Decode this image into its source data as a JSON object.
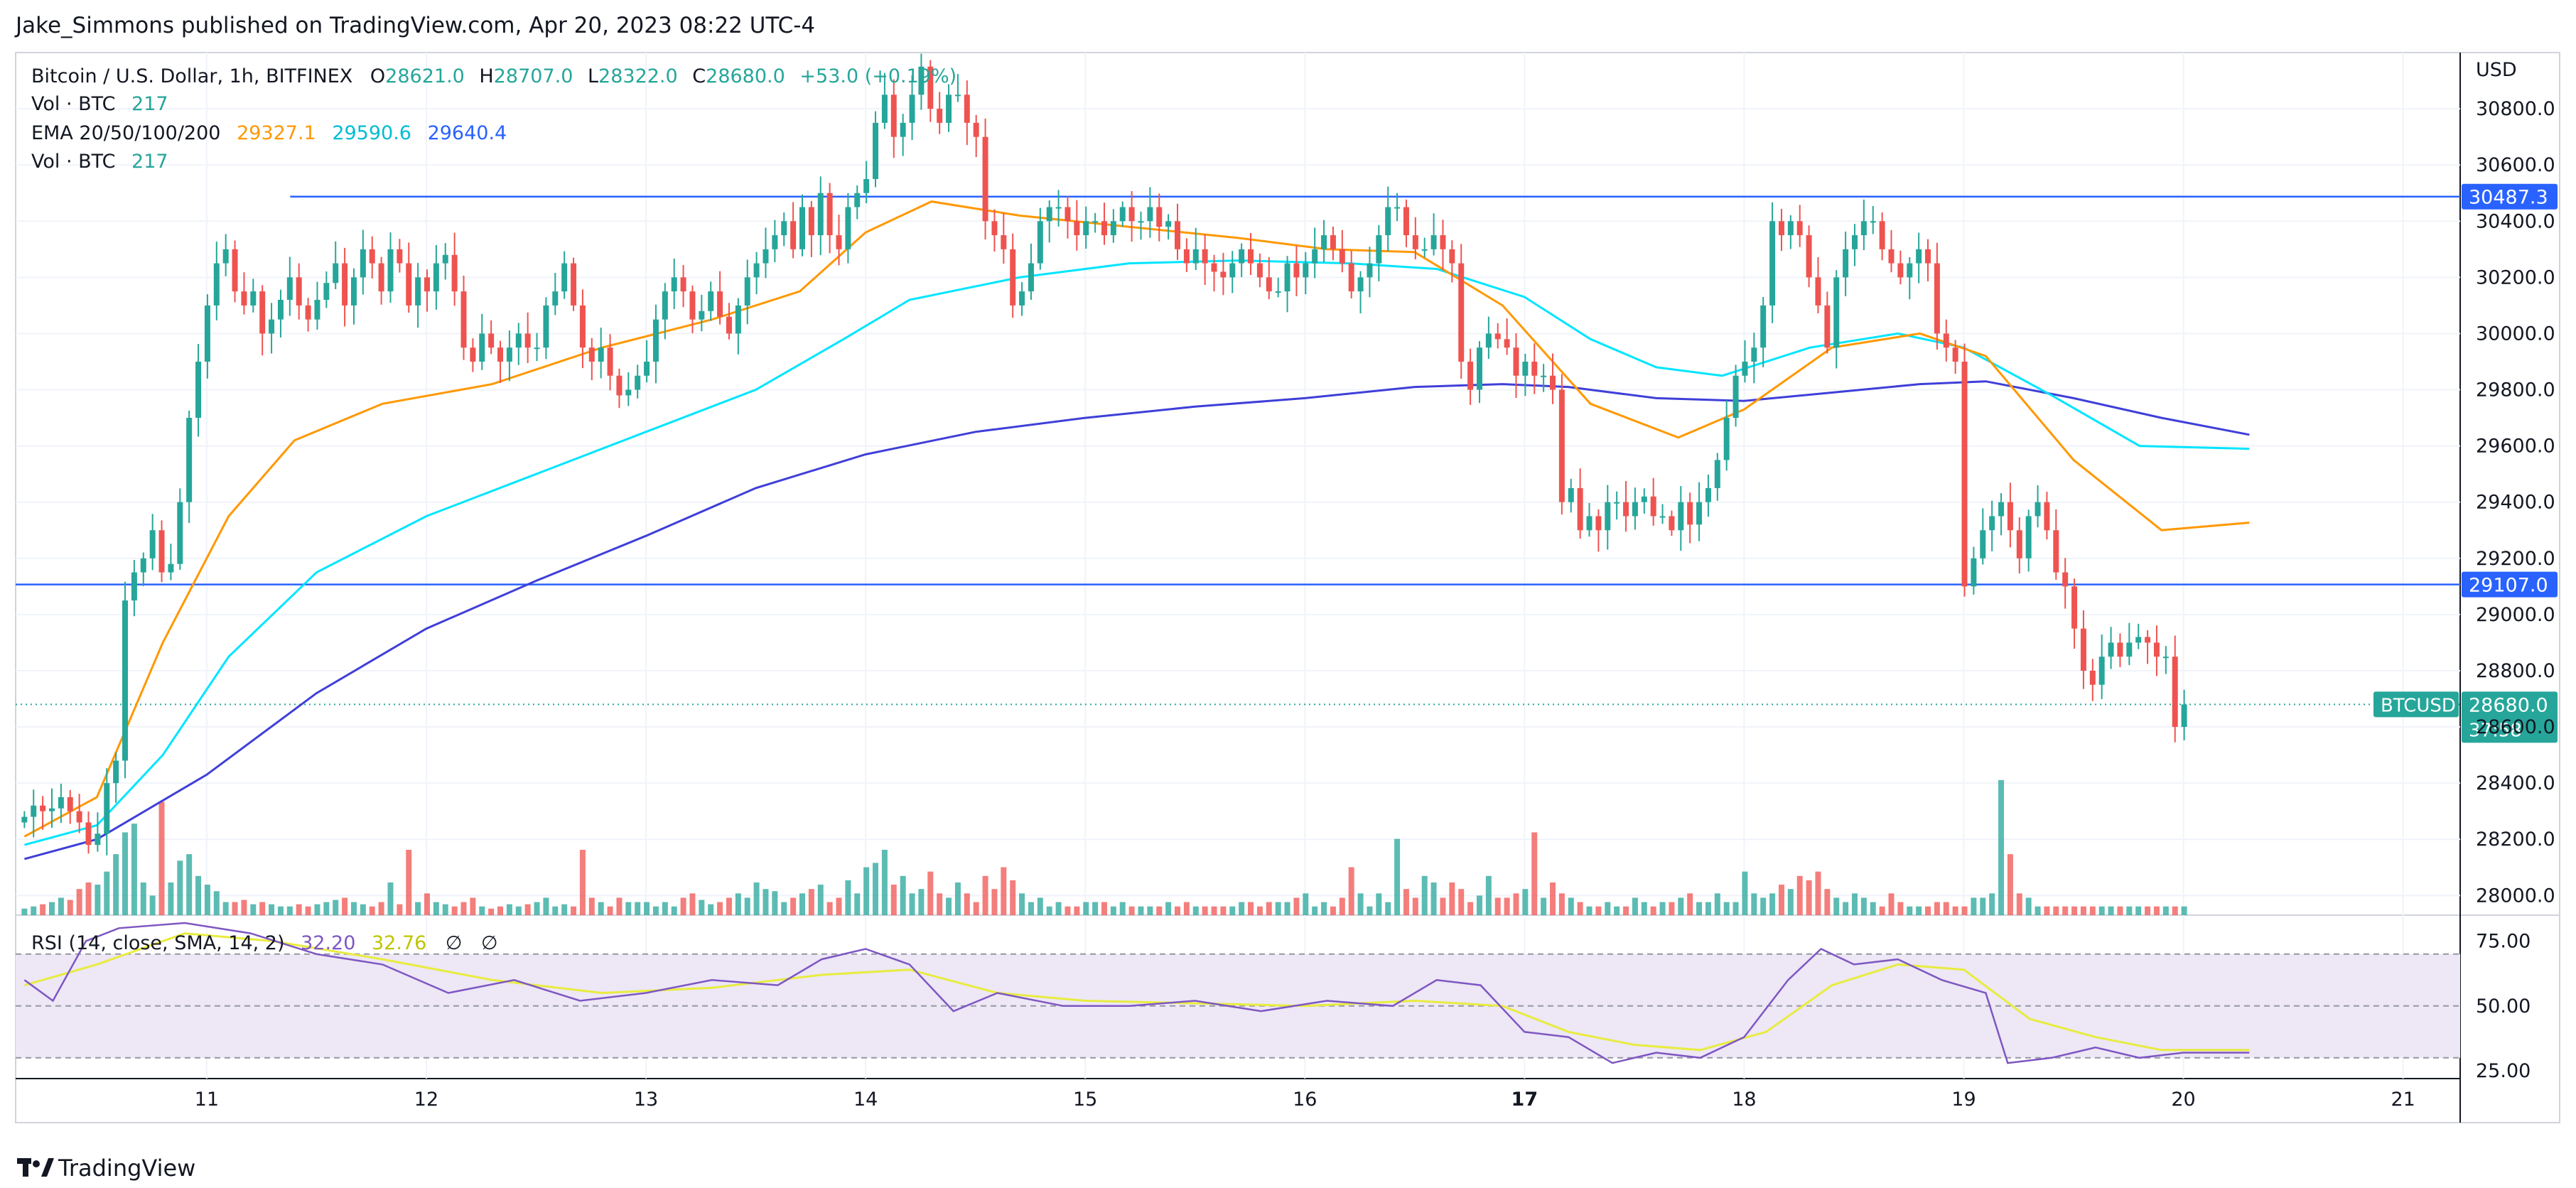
{
  "header": {
    "publisher_line": "Jake_Simmons published on TradingView.com, Apr 20, 2023 08:22 UTC-4"
  },
  "footer": {
    "brand": "TradingView"
  },
  "legend": {
    "symbol": "Bitcoin / U.S. Dollar, 1h, BITFINEX",
    "ohlc": {
      "o_label": "O",
      "o": "28621.0",
      "h_label": "H",
      "h": "28707.0",
      "l_label": "L",
      "l": "28322.0",
      "c_label": "C",
      "c": "28680.0",
      "change": "+53.0 (+0.19%)"
    },
    "vol_label": "Vol · BTC",
    "vol_value": "217",
    "ema_label": "EMA 20/50/100/200",
    "ema_values": [
      "29327.1",
      "29590.6",
      "29640.4"
    ],
    "vol2_label": "Vol · BTC",
    "vol2_value": "217"
  },
  "rsi_legend": {
    "label": "RSI (14, close, SMA, 14, 2)",
    "rsi": "32.20",
    "sma": "32.76",
    "null1": "∅",
    "null2": "∅"
  },
  "colors": {
    "up": "#26a69a",
    "down": "#ef5350",
    "ema20": "#ff9800",
    "ema50": "#00e5ff",
    "ema200": "#3f3fd9",
    "hline": "#2962ff",
    "rsi": "#7e57c2",
    "rsi_sma": "#e8ec3f",
    "rsi_band": "#ede7f6"
  },
  "chart_data": {
    "type": "candlestick",
    "symbol": "BTCUSD",
    "currency": "USD",
    "x_tick_labels": [
      "11",
      "12",
      "13",
      "14",
      "15",
      "16",
      "17",
      "18",
      "19",
      "20",
      "21"
    ],
    "x_tick_days": [
      11,
      12,
      13,
      14,
      15,
      16,
      17,
      18,
      19,
      20,
      21
    ],
    "x_range_days": [
      10.13,
      21.26
    ],
    "y_ticks": [
      28000,
      28200,
      28400,
      28600,
      28800,
      29000,
      29200,
      29400,
      29600,
      29800,
      30000,
      30200,
      30400,
      30600,
      30800
    ],
    "y_tick_labels": [
      "28000.0",
      "28200.0",
      "28400.0",
      "28600.0",
      "28800.0",
      "29000.0",
      "29200.0",
      "29400.0",
      "29600.0",
      "29800.0",
      "30000.0",
      "30200.0",
      "30400.0",
      "30600.0",
      "30800.0"
    ],
    "ylim": [
      27930,
      31000
    ],
    "horizontal_lines": [
      {
        "value": 30487.3,
        "label": "30487.3",
        "start_day": 11.38
      },
      {
        "value": 29107.0,
        "label": "29107.0",
        "start_day": 10.13
      }
    ],
    "last_price": {
      "label": "BTCUSD",
      "value": 28680.0,
      "value_label": "28680.0",
      "countdown": "37:58"
    },
    "candles_start_day": 10.17,
    "candles_per_day": 24,
    "closes": [
      28280,
      28320,
      28300,
      28310,
      28350,
      28300,
      28260,
      28180,
      28220,
      28400,
      28480,
      29050,
      29150,
      29200,
      29300,
      29150,
      29180,
      29400,
      29700,
      29900,
      30100,
      30250,
      30300,
      30150,
      30100,
      30150,
      30000,
      30050,
      30120,
      30200,
      30100,
      30050,
      30120,
      30180,
      30250,
      30100,
      30200,
      30300,
      30250,
      30150,
      30300,
      30250,
      30100,
      30200,
      30150,
      30250,
      30280,
      30150,
      29950,
      29900,
      30000,
      29950,
      29900,
      29950,
      30000,
      29950,
      29950,
      30100,
      30150,
      30250,
      30100,
      29950,
      29900,
      29950,
      29850,
      29780,
      29800,
      29850,
      29900,
      30050,
      30150,
      30200,
      30150,
      30050,
      30080,
      30150,
      30060,
      30000,
      30100,
      30200,
      30250,
      30300,
      30350,
      30400,
      30300,
      30450,
      30350,
      30500,
      30350,
      30300,
      30450,
      30500,
      30550,
      30750,
      30850,
      30700,
      30750,
      30850,
      30950,
      30800,
      30750,
      30850,
      30850,
      30750,
      30700,
      30400,
      30350,
      30300,
      30100,
      30150,
      30250,
      30400,
      30450,
      30450,
      30400,
      30350,
      30400,
      30400,
      30350,
      30400,
      30450,
      30400,
      30400,
      30450,
      30380,
      30400,
      30300,
      30250,
      30300,
      30250,
      30220,
      30200,
      30250,
      30300,
      30250,
      30200,
      30150,
      30150,
      30250,
      30200,
      30250,
      30300,
      30350,
      30300,
      30250,
      30150,
      30200,
      30250,
      30350,
      30450,
      30450,
      30350,
      30300,
      30300,
      30350,
      30300,
      30250,
      29900,
      29800,
      29950,
      30000,
      29980,
      29950,
      29850,
      29900,
      29850,
      29850,
      29800,
      29400,
      29450,
      29300,
      29350,
      29300,
      29400,
      29400,
      29350,
      29400,
      29420,
      29350,
      29350,
      29300,
      29400,
      29320,
      29400,
      29450,
      29550,
      29700,
      29850,
      29900,
      29950,
      30100,
      30400,
      30350,
      30400,
      30350,
      30200,
      30100,
      29950,
      30200,
      30300,
      30350,
      30400,
      30400,
      30300,
      30250,
      30200,
      30250,
      30300,
      30250,
      30000,
      29950,
      29900,
      29100,
      29200,
      29300,
      29350,
      29400,
      29300,
      29200,
      29350,
      29400,
      29300,
      29150,
      29100,
      28950,
      28800,
      28750,
      28850,
      28900,
      28850,
      28900,
      28920,
      28900,
      28850,
      28850,
      28600,
      28680
    ],
    "volume_axis_max": 1000,
    "volumes": [
      30,
      40,
      50,
      60,
      80,
      70,
      120,
      150,
      140,
      200,
      280,
      380,
      420,
      150,
      90,
      520,
      150,
      250,
      280,
      180,
      140,
      110,
      60,
      60,
      70,
      50,
      60,
      50,
      40,
      40,
      50,
      40,
      50,
      60,
      70,
      80,
      60,
      50,
      40,
      60,
      150,
      50,
      300,
      60,
      100,
      60,
      50,
      40,
      60,
      80,
      40,
      30,
      40,
      50,
      40,
      50,
      60,
      80,
      40,
      50,
      40,
      300,
      80,
      60,
      40,
      80,
      60,
      60,
      60,
      40,
      60,
      40,
      80,
      100,
      70,
      50,
      60,
      80,
      100,
      80,
      150,
      120,
      110,
      60,
      80,
      100,
      120,
      140,
      60,
      80,
      160,
      100,
      220,
      240,
      300,
      140,
      180,
      100,
      120,
      200,
      100,
      80,
      150,
      100,
      60,
      180,
      120,
      220,
      160,
      100,
      60,
      80,
      40,
      60,
      40,
      40,
      60,
      60,
      60,
      40,
      60,
      40,
      40,
      40,
      40,
      60,
      40,
      60,
      40,
      40,
      40,
      40,
      40,
      60,
      60,
      40,
      60,
      60,
      60,
      80,
      100,
      40,
      60,
      40,
      80,
      220,
      100,
      40,
      100,
      60,
      350,
      120,
      80,
      180,
      150,
      80,
      150,
      120,
      60,
      90,
      180,
      80,
      80,
      100,
      120,
      380,
      80,
      150,
      100,
      80,
      60,
      40,
      40,
      60,
      40,
      40,
      80,
      60,
      40,
      60,
      60,
      80,
      100,
      60,
      60,
      100,
      60,
      60,
      200,
      100,
      80,
      100,
      140,
      120,
      180,
      160,
      200,
      120,
      80,
      60,
      100,
      80,
      60,
      40,
      100,
      60,
      40,
      40,
      40,
      60,
      60,
      40,
      40,
      80,
      80,
      100,
      620,
      280,
      100,
      80,
      40,
      40,
      40,
      40,
      40,
      40,
      40,
      40,
      40,
      40,
      40,
      40,
      40,
      40,
      40,
      40,
      40,
      40,
      40,
      40,
      40
    ],
    "ema20_points": [
      [
        10.17,
        28210
      ],
      [
        10.5,
        28350
      ],
      [
        10.8,
        28900
      ],
      [
        11.1,
        29350
      ],
      [
        11.4,
        29620
      ],
      [
        11.8,
        29750
      ],
      [
        12.3,
        29820
      ],
      [
        12.8,
        29950
      ],
      [
        13.3,
        30050
      ],
      [
        13.7,
        30150
      ],
      [
        14.0,
        30360
      ],
      [
        14.3,
        30470
      ],
      [
        14.7,
        30420
      ],
      [
        15.2,
        30380
      ],
      [
        15.7,
        30340
      ],
      [
        16.1,
        30300
      ],
      [
        16.5,
        30290
      ],
      [
        16.9,
        30100
      ],
      [
        17.3,
        29750
      ],
      [
        17.7,
        29630
      ],
      [
        18.0,
        29730
      ],
      [
        18.4,
        29950
      ],
      [
        18.8,
        30000
      ],
      [
        19.1,
        29920
      ],
      [
        19.5,
        29550
      ],
      [
        19.9,
        29300
      ],
      [
        20.3,
        29327
      ]
    ],
    "ema50_points": [
      [
        10.17,
        28180
      ],
      [
        10.5,
        28250
      ],
      [
        10.8,
        28500
      ],
      [
        11.1,
        28850
      ],
      [
        11.5,
        29150
      ],
      [
        12.0,
        29350
      ],
      [
        12.5,
        29500
      ],
      [
        13.0,
        29650
      ],
      [
        13.5,
        29800
      ],
      [
        13.9,
        29980
      ],
      [
        14.2,
        30120
      ],
      [
        14.7,
        30200
      ],
      [
        15.2,
        30250
      ],
      [
        15.7,
        30260
      ],
      [
        16.2,
        30250
      ],
      [
        16.6,
        30230
      ],
      [
        17.0,
        30130
      ],
      [
        17.3,
        29980
      ],
      [
        17.6,
        29880
      ],
      [
        17.9,
        29850
      ],
      [
        18.3,
        29950
      ],
      [
        18.7,
        30000
      ],
      [
        19.0,
        29950
      ],
      [
        19.4,
        29780
      ],
      [
        19.8,
        29600
      ],
      [
        20.3,
        29590
      ]
    ],
    "ema200_points": [
      [
        10.17,
        28130
      ],
      [
        10.5,
        28200
      ],
      [
        11.0,
        28430
      ],
      [
        11.5,
        28720
      ],
      [
        12.0,
        28950
      ],
      [
        12.5,
        29120
      ],
      [
        13.0,
        29280
      ],
      [
        13.5,
        29450
      ],
      [
        14.0,
        29570
      ],
      [
        14.5,
        29650
      ],
      [
        15.0,
        29700
      ],
      [
        15.5,
        29740
      ],
      [
        16.0,
        29770
      ],
      [
        16.5,
        29810
      ],
      [
        16.9,
        29820
      ],
      [
        17.2,
        29810
      ],
      [
        17.6,
        29770
      ],
      [
        18.0,
        29760
      ],
      [
        18.4,
        29790
      ],
      [
        18.8,
        29820
      ],
      [
        19.1,
        29830
      ],
      [
        19.5,
        29770
      ],
      [
        19.9,
        29700
      ],
      [
        20.3,
        29640
      ]
    ],
    "rsi_panel": {
      "y_ticks": [
        25,
        50,
        75
      ],
      "y_tick_labels": [
        "25.00",
        "50.00",
        "75.00"
      ],
      "band": [
        30,
        70
      ],
      "ylim": [
        22,
        85
      ],
      "rsi_points": [
        [
          10.17,
          60
        ],
        [
          10.3,
          52
        ],
        [
          10.45,
          75
        ],
        [
          10.6,
          80
        ],
        [
          10.9,
          82
        ],
        [
          11.2,
          78
        ],
        [
          11.5,
          70
        ],
        [
          11.8,
          66
        ],
        [
          12.1,
          55
        ],
        [
          12.4,
          60
        ],
        [
          12.7,
          52
        ],
        [
          13.0,
          55
        ],
        [
          13.3,
          60
        ],
        [
          13.6,
          58
        ],
        [
          13.8,
          68
        ],
        [
          14.0,
          72
        ],
        [
          14.2,
          66
        ],
        [
          14.4,
          48
        ],
        [
          14.6,
          55
        ],
        [
          14.9,
          50
        ],
        [
          15.2,
          50
        ],
        [
          15.5,
          52
        ],
        [
          15.8,
          48
        ],
        [
          16.1,
          52
        ],
        [
          16.4,
          50
        ],
        [
          16.6,
          60
        ],
        [
          16.8,
          58
        ],
        [
          17.0,
          40
        ],
        [
          17.2,
          38
        ],
        [
          17.4,
          28
        ],
        [
          17.6,
          32
        ],
        [
          17.8,
          30
        ],
        [
          18.0,
          38
        ],
        [
          18.2,
          60
        ],
        [
          18.35,
          72
        ],
        [
          18.5,
          66
        ],
        [
          18.7,
          68
        ],
        [
          18.9,
          60
        ],
        [
          19.1,
          55
        ],
        [
          19.2,
          28
        ],
        [
          19.4,
          30
        ],
        [
          19.6,
          34
        ],
        [
          19.8,
          30
        ],
        [
          20.0,
          32
        ],
        [
          20.3,
          32
        ]
      ],
      "sma_points": [
        [
          10.17,
          58
        ],
        [
          10.5,
          66
        ],
        [
          10.9,
          78
        ],
        [
          11.3,
          75
        ],
        [
          11.8,
          68
        ],
        [
          12.3,
          60
        ],
        [
          12.8,
          55
        ],
        [
          13.3,
          57
        ],
        [
          13.8,
          62
        ],
        [
          14.2,
          64
        ],
        [
          14.6,
          55
        ],
        [
          15.0,
          52
        ],
        [
          15.5,
          51
        ],
        [
          16.0,
          50
        ],
        [
          16.5,
          52
        ],
        [
          16.9,
          50
        ],
        [
          17.2,
          40
        ],
        [
          17.5,
          35
        ],
        [
          17.8,
          33
        ],
        [
          18.1,
          40
        ],
        [
          18.4,
          58
        ],
        [
          18.7,
          66
        ],
        [
          19.0,
          64
        ],
        [
          19.3,
          45
        ],
        [
          19.6,
          38
        ],
        [
          19.9,
          33
        ],
        [
          20.3,
          33
        ]
      ]
    }
  }
}
